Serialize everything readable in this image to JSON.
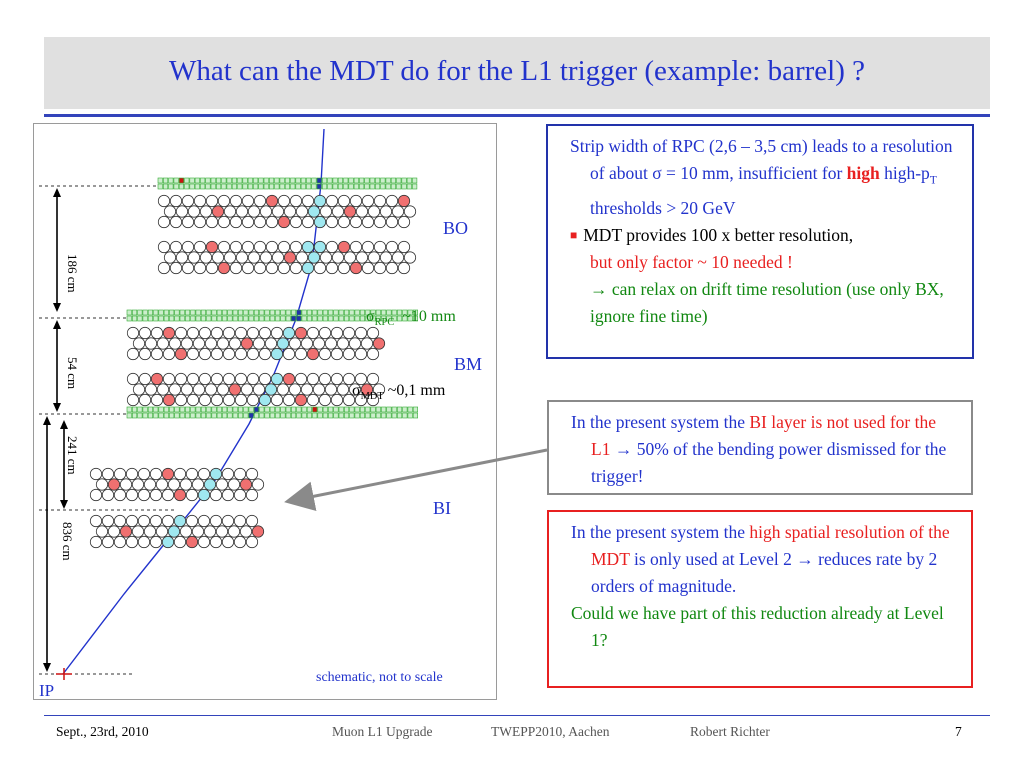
{
  "slide": {
    "title": "What can the MDT do for the L1 trigger (example: barrel) ?",
    "page_number": "7"
  },
  "diagram": {
    "stations": [
      "BO",
      "BM",
      "BI"
    ],
    "dim_186": "186 cm",
    "dim_54": "54 cm",
    "dim_241": "241 cm",
    "dim_836": "836 cm",
    "sigma_symbol": "σ",
    "rpc_sub": "RPC",
    "rpc_res": "~10 mm",
    "mdt_sub": "MDT",
    "mdt_res": "~0,1 mm",
    "ip_label": "IP",
    "note": "schematic, not to scale",
    "colors": {
      "track": "#2233cc",
      "tube": "#ffffff",
      "tube_hit_red": "#f07070",
      "tube_hit_cyan": "#9fe8f0",
      "rpc_strip": "#33aa33",
      "rpc_strip_fill": "#cceecc",
      "rpc_hit_blue": "#2233aa",
      "rpc_hit_red": "#cc1111",
      "arrow": "#8a8a8a"
    }
  },
  "box1": {
    "p1": "Strip width of RPC (2,6 – 3,5 cm) leads to a resolution of about σ = 10 mm, insufficient for ",
    "p1_high": "high",
    "p1_mid": " high-p",
    "p1_sub": "T",
    "p1_end": " thresholds > 20 GeV",
    "p2_black": "MDT provides 100 x better resolution,",
    "p2_red": "but only factor ~ 10 needed !",
    "p2_arrow": "→",
    "p2_green": " can relax on drift time resolution (use only BX, ignore fine time)"
  },
  "box2": {
    "a": "In the present system the ",
    "b_red": "BI layer is not used for the L1",
    "arrow": " → ",
    "c": "50% of the bending power dismissed for the trigger!"
  },
  "box3": {
    "a": "In the present system the ",
    "b_red": "high spatial resolution of the MDT",
    "c": " is only used at Level 2 ",
    "arrow": "→",
    "d": " reduces rate by 2 orders of magnitude.",
    "e_green": "Could we have part of this reduction already at Level 1?"
  },
  "footer": {
    "date": "Sept., 23rd, 2010",
    "project": "Muon L1 Upgrade",
    "event": "TWEPP2010, Aachen",
    "author": "Robert Richter"
  }
}
